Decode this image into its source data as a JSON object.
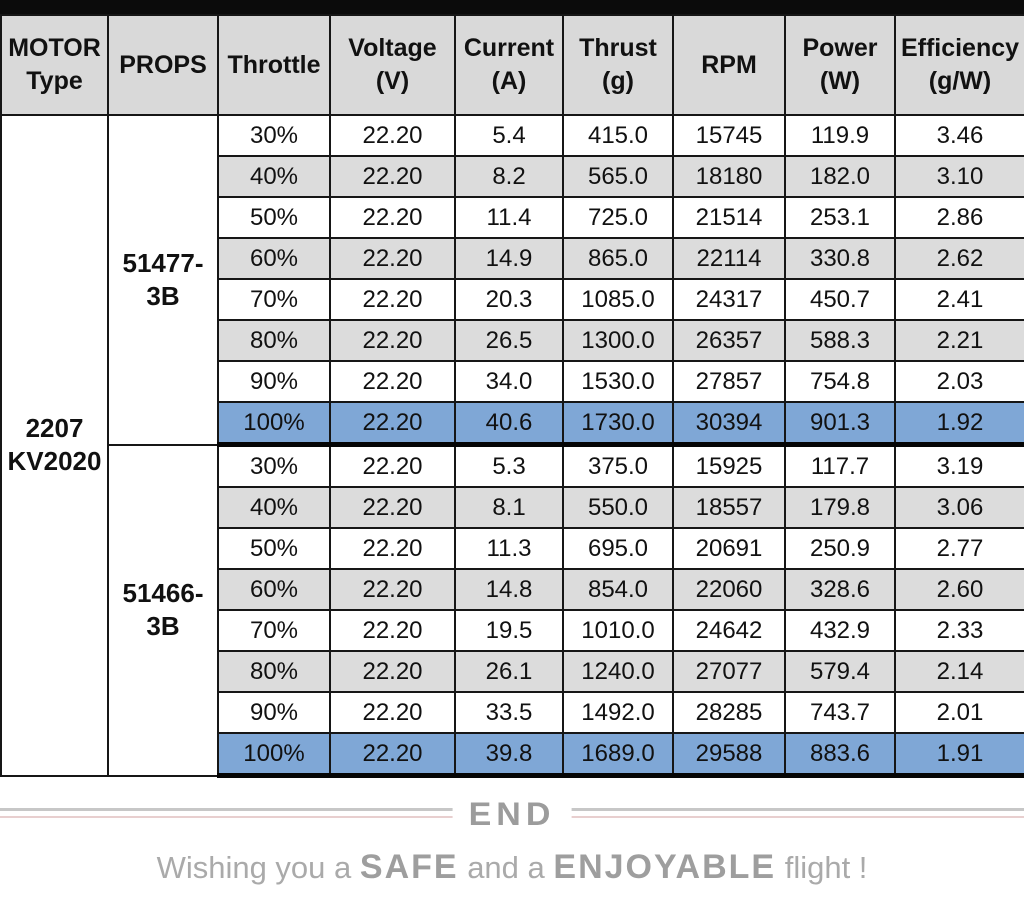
{
  "header": {
    "columns": [
      {
        "line1": "MOTOR",
        "line2": "Type"
      },
      {
        "line1": "PROPS",
        "line2": ""
      },
      {
        "line1": "Throttle",
        "line2": ""
      },
      {
        "line1": "Voltage",
        "line2": "(V)"
      },
      {
        "line1": "Current",
        "line2": "(A)"
      },
      {
        "line1": "Thrust",
        "line2": "(g)"
      },
      {
        "line1": "RPM",
        "line2": ""
      },
      {
        "line1": "Power",
        "line2": "(W)"
      },
      {
        "line1": "Efficiency",
        "line2": "(g/W)"
      }
    ]
  },
  "motor": {
    "line1": "2207",
    "line2": "KV2020"
  },
  "sections": [
    {
      "props": {
        "line1": "51477-",
        "line2": "3B"
      },
      "rows": [
        {
          "throttle": "30%",
          "voltage": "22.20",
          "current": "5.4",
          "thrust": "415.0",
          "rpm": "15745",
          "power": "119.9",
          "efficiency": "3.46",
          "highlight": false
        },
        {
          "throttle": "40%",
          "voltage": "22.20",
          "current": "8.2",
          "thrust": "565.0",
          "rpm": "18180",
          "power": "182.0",
          "efficiency": "3.10",
          "highlight": false
        },
        {
          "throttle": "50%",
          "voltage": "22.20",
          "current": "11.4",
          "thrust": "725.0",
          "rpm": "21514",
          "power": "253.1",
          "efficiency": "2.86",
          "highlight": false
        },
        {
          "throttle": "60%",
          "voltage": "22.20",
          "current": "14.9",
          "thrust": "865.0",
          "rpm": "22114",
          "power": "330.8",
          "efficiency": "2.62",
          "highlight": false
        },
        {
          "throttle": "70%",
          "voltage": "22.20",
          "current": "20.3",
          "thrust": "1085.0",
          "rpm": "24317",
          "power": "450.7",
          "efficiency": "2.41",
          "highlight": false
        },
        {
          "throttle": "80%",
          "voltage": "22.20",
          "current": "26.5",
          "thrust": "1300.0",
          "rpm": "26357",
          "power": "588.3",
          "efficiency": "2.21",
          "highlight": false
        },
        {
          "throttle": "90%",
          "voltage": "22.20",
          "current": "34.0",
          "thrust": "1530.0",
          "rpm": "27857",
          "power": "754.8",
          "efficiency": "2.03",
          "highlight": false
        },
        {
          "throttle": "100%",
          "voltage": "22.20",
          "current": "40.6",
          "thrust": "1730.0",
          "rpm": "30394",
          "power": "901.3",
          "efficiency": "1.92",
          "highlight": true
        }
      ]
    },
    {
      "props": {
        "line1": "51466-",
        "line2": "3B"
      },
      "rows": [
        {
          "throttle": "30%",
          "voltage": "22.20",
          "current": "5.3",
          "thrust": "375.0",
          "rpm": "15925",
          "power": "117.7",
          "efficiency": "3.19",
          "highlight": false
        },
        {
          "throttle": "40%",
          "voltage": "22.20",
          "current": "8.1",
          "thrust": "550.0",
          "rpm": "18557",
          "power": "179.8",
          "efficiency": "3.06",
          "highlight": false
        },
        {
          "throttle": "50%",
          "voltage": "22.20",
          "current": "11.3",
          "thrust": "695.0",
          "rpm": "20691",
          "power": "250.9",
          "efficiency": "2.77",
          "highlight": false
        },
        {
          "throttle": "60%",
          "voltage": "22.20",
          "current": "14.8",
          "thrust": "854.0",
          "rpm": "22060",
          "power": "328.6",
          "efficiency": "2.60",
          "highlight": false
        },
        {
          "throttle": "70%",
          "voltage": "22.20",
          "current": "19.5",
          "thrust": "1010.0",
          "rpm": "24642",
          "power": "432.9",
          "efficiency": "2.33",
          "highlight": false
        },
        {
          "throttle": "80%",
          "voltage": "22.20",
          "current": "26.1",
          "thrust": "1240.0",
          "rpm": "27077",
          "power": "579.4",
          "efficiency": "2.14",
          "highlight": false
        },
        {
          "throttle": "90%",
          "voltage": "22.20",
          "current": "33.5",
          "thrust": "1492.0",
          "rpm": "28285",
          "power": "743.7",
          "efficiency": "2.01",
          "highlight": false
        },
        {
          "throttle": "100%",
          "voltage": "22.20",
          "current": "39.8",
          "thrust": "1689.0",
          "rpm": "29588",
          "power": "883.6",
          "efficiency": "1.91",
          "highlight": true
        }
      ]
    }
  ],
  "footer": {
    "divider_label": "END",
    "message": {
      "prefix": "Wishing you a ",
      "emph1": "SAFE",
      "middle": " and a ",
      "emph2": "ENJOYABLE",
      "suffix": " flight !"
    }
  },
  "colors": {
    "highlight_blue": "#7fa7d6",
    "row_gray": "#dcdcdc",
    "header_gray": "#d9d9d9",
    "divider_gray": "#c7c7c7",
    "divider_pink": "#e8cfcf",
    "footer_text_gray": "#aaaaaa"
  }
}
